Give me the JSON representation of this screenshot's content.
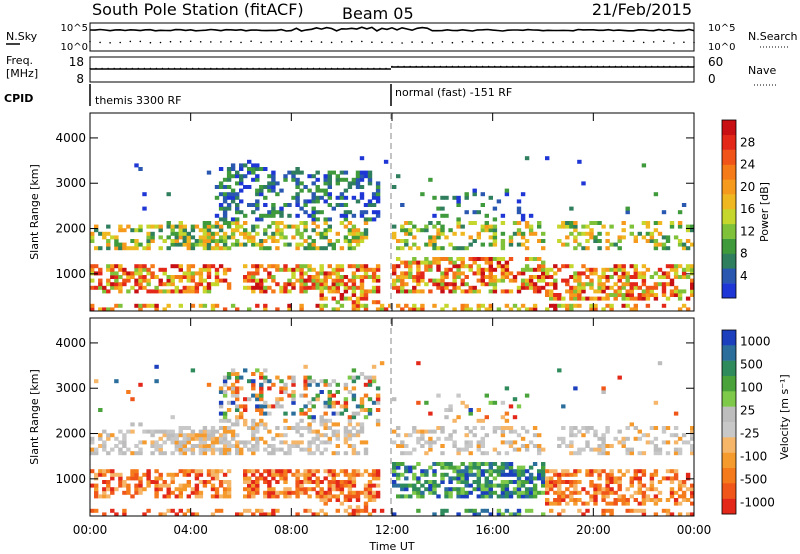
{
  "header": {
    "station": "South Pole Station (fitACF)",
    "beam": "Beam 05",
    "date": "21/Feb/2015"
  },
  "panel_labels": {
    "nsky": "N.Sky",
    "nsearch": "N.Search",
    "freq_line1": "Freq.",
    "freq_line2": "[MHz]",
    "nave": "Nave",
    "cpid": "CPID"
  },
  "cpid_segments": [
    {
      "label": "themis 3300 RF",
      "start": "00:00"
    },
    {
      "label": "normal (fast) -151 RF",
      "start": "12:00"
    }
  ],
  "chart_data": [
    {
      "type": "line",
      "name": "noise",
      "yticks_left": [
        "10^5",
        "10^0"
      ],
      "yticks_right": [
        "10^5",
        "10^0"
      ]
    },
    {
      "type": "line",
      "name": "frequency",
      "yticks_left": [
        "18",
        "8"
      ],
      "yticks_right": [
        "60",
        "0"
      ]
    },
    {
      "type": "heatmap",
      "name": "power",
      "xlabel": "",
      "ylabel": "Slant Range [km]",
      "x_range_hours": [
        0,
        24
      ],
      "ylim": [
        180,
        4550
      ],
      "xticks": [
        "00:00",
        "04:00",
        "08:00",
        "12:00",
        "16:00",
        "20:00",
        "00:00"
      ],
      "xtick_hours": [
        0,
        4,
        8,
        12,
        16,
        20,
        24
      ],
      "yticks": [
        1000,
        2000,
        3000,
        4000
      ],
      "colorbar": {
        "label": "Power [dB]",
        "ticks": [
          "4",
          "8",
          "12",
          "16",
          "20",
          "24",
          "28"
        ],
        "range": [
          0,
          32
        ],
        "colors": [
          "#1e36d6",
          "#2a58b0",
          "#2f7e5e",
          "#3f9a3c",
          "#7fc23a",
          "#c5d62c",
          "#f0b820",
          "#f59a1c",
          "#f57a18",
          "#f05418",
          "#e3281a",
          "#c80f14"
        ]
      }
    },
    {
      "type": "heatmap",
      "name": "velocity",
      "xlabel": "Time UT",
      "ylabel": "Slant Range [km]",
      "x_range_hours": [
        0,
        24
      ],
      "ylim": [
        180,
        4550
      ],
      "xticks": [
        "00:00",
        "04:00",
        "08:00",
        "12:00",
        "16:00",
        "20:00",
        "00:00"
      ],
      "xtick_hours": [
        0,
        4,
        8,
        12,
        16,
        20,
        24
      ],
      "yticks": [
        1000,
        2000,
        3000,
        4000
      ],
      "colorbar": {
        "label": "Velocity [m s⁻¹]",
        "ticks": [
          "1000",
          "500",
          "100",
          "25",
          "-25",
          "-100",
          "-500",
          "-1000"
        ],
        "colors": [
          "#1b3fbd",
          "#2b6e9c",
          "#2f8a5c",
          "#4aa33a",
          "#7ec94a",
          "#bdbdbd",
          "#c8c8c8",
          "#f5b66a",
          "#f59a2c",
          "#f57a1c",
          "#f0561a",
          "#e3281a"
        ]
      }
    }
  ]
}
